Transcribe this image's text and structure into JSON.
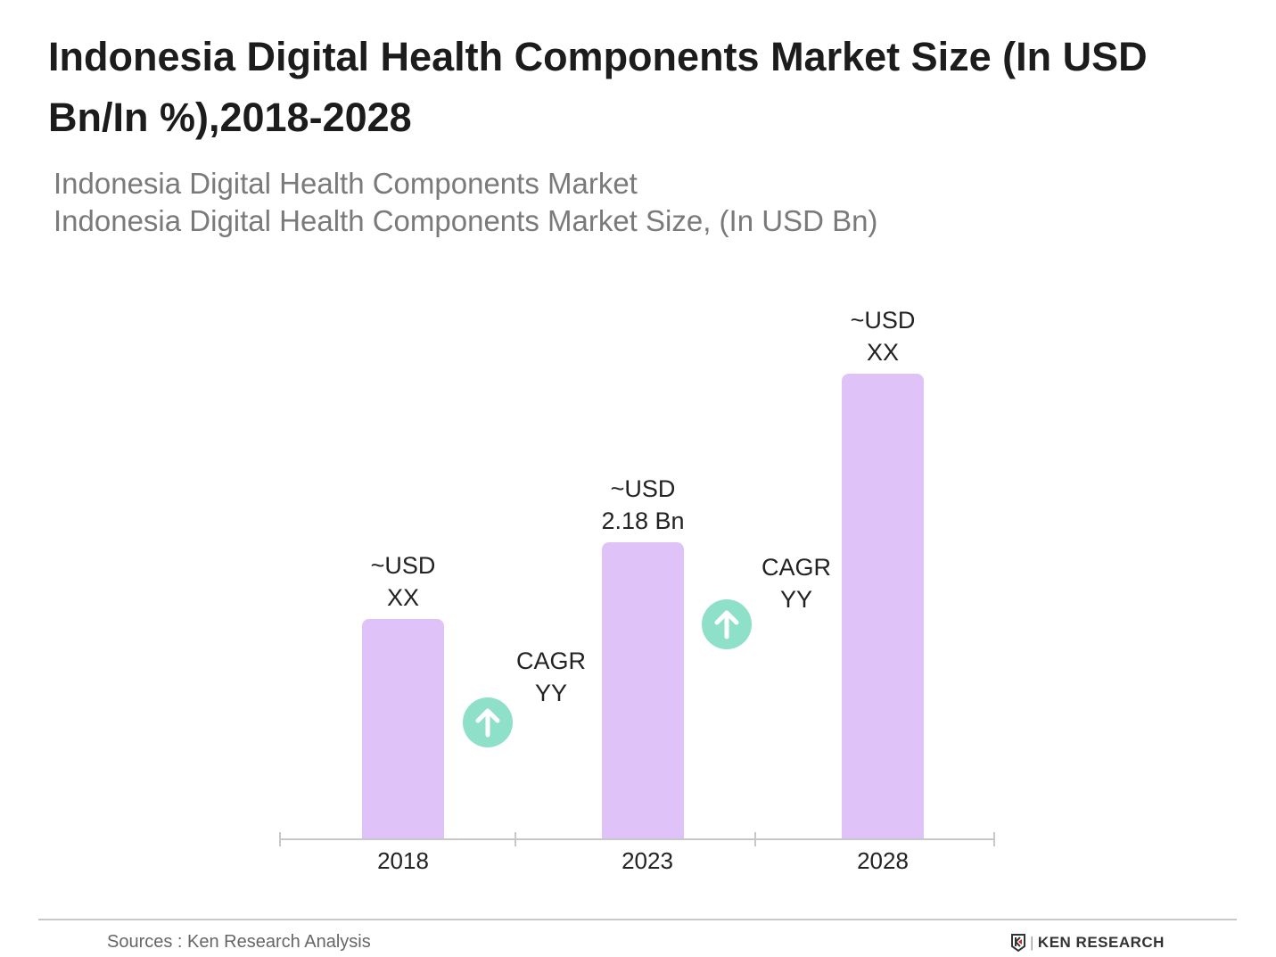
{
  "title": "Indonesia Digital Health Components Market Size (In USD Bn/In %),2018-2028",
  "subtitle_lines": [
    "Indonesia Digital Health Components Market",
    "Indonesia Digital Health Components Market Size, (In USD Bn)"
  ],
  "colors": {
    "bar": "#dfc2f7",
    "cagr_icon": "#8ee0c8",
    "axis": "#c8c8c8"
  },
  "chart_data": {
    "type": "bar",
    "categories": [
      "2018",
      "2023",
      "2028"
    ],
    "values": [
      1.62,
      2.18,
      3.42
    ],
    "data_labels": [
      [
        "~USD",
        "XX"
      ],
      [
        "~USD",
        "2.18 Bn"
      ],
      [
        "~USD",
        "XX"
      ]
    ],
    "cagr_labels": [
      [
        "CAGR",
        "YY"
      ],
      [
        "CAGR",
        "YY"
      ]
    ],
    "cagr_icon": "arrow-up-circle-icon",
    "ylim": [
      0,
      3.42
    ],
    "grid": false,
    "legend": "none"
  },
  "footer": {
    "sources": "Sources : Ken Research Analysis",
    "logo": "KEN RESEARCH"
  }
}
